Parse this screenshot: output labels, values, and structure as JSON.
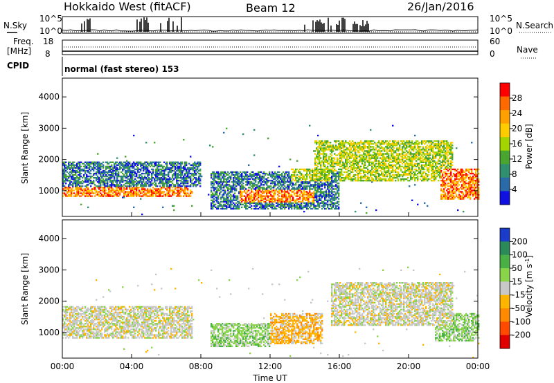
{
  "header": {
    "station": "Hokkaido West (fitACF)",
    "beam": "Beam 12",
    "date": "26/Jan/2016"
  },
  "summary_panels": {
    "nsky_label": "N.Sky",
    "nsearch_label": "N.Search",
    "nsky_ticks": [
      "10^5",
      "10^0"
    ],
    "nsearch_ticks": [
      "10^5",
      "10^0"
    ],
    "freq_label_1": "Freq.",
    "freq_label_2": "[MHz]",
    "freq_ticks": [
      "18",
      "8"
    ],
    "nave_label": "Nave",
    "nave_ticks": [
      "60",
      "0"
    ],
    "cpid_label": "CPID",
    "cpid_text": "normal (fast stereo) 153"
  },
  "chart_data": [
    {
      "type": "heatmap",
      "name": "power",
      "ylabel": "Slant Range [km]",
      "xlabel": "",
      "xlim": [
        0,
        24
      ],
      "ylim": [
        180,
        4600
      ],
      "x_ticks": [
        "00:00",
        "04:00",
        "08:00",
        "12:00",
        "16:00",
        "20:00",
        "00:00"
      ],
      "y_ticks": [
        "1000",
        "2000",
        "3000",
        "4000"
      ],
      "colorbar": {
        "label": "Power [dB]",
        "ticks": [
          "28",
          "24",
          "20",
          "16",
          "12",
          "8",
          "4"
        ],
        "colors": [
          "#ff0000",
          "#ff6a00",
          "#ff9f00",
          "#ffcc00",
          "#a3d400",
          "#4aa52e",
          "#2f8f6f",
          "#2a6aa8",
          "#1010e0"
        ]
      },
      "echo_regions": [
        {
          "t": [
            0.0,
            7.5
          ],
          "r": [
            800,
            1100
          ],
          "level": "high"
        },
        {
          "t": [
            10.2,
            14.5
          ],
          "r": [
            600,
            1000
          ],
          "level": "high"
        },
        {
          "t": [
            13.2,
            15.5
          ],
          "r": [
            1300,
            1700
          ],
          "level": "medium"
        },
        {
          "t": [
            21.8,
            24.0
          ],
          "r": [
            700,
            1700
          ],
          "level": "high"
        },
        {
          "t": [
            0.0,
            8.0
          ],
          "r": [
            1100,
            1900
          ],
          "level": "low"
        },
        {
          "t": [
            8.5,
            16.0
          ],
          "r": [
            400,
            1600
          ],
          "level": "low"
        },
        {
          "t": [
            14.5,
            22.5
          ],
          "r": [
            1300,
            2600
          ],
          "level": "medium"
        }
      ]
    },
    {
      "type": "heatmap",
      "name": "velocity",
      "ylabel": "Slant Range [km]",
      "xlabel": "Time UT",
      "xlim": [
        0,
        24
      ],
      "ylim": [
        180,
        4600
      ],
      "x_ticks": [
        "00:00",
        "04:00",
        "08:00",
        "12:00",
        "16:00",
        "20:00",
        "00:00"
      ],
      "y_ticks": [
        "1000",
        "2000",
        "3000",
        "4000"
      ],
      "colorbar": {
        "label": "Velocity [m s^-1]",
        "ticks": [
          "200",
          "100",
          "50",
          "15",
          "-15",
          "-50",
          "-100",
          "-200"
        ],
        "colors": [
          "#1a3cc8",
          "#2a8a5a",
          "#48b044",
          "#8ad44a",
          "#c8c8c8",
          "#ffb400",
          "#ff8a00",
          "#ff4a00",
          "#e00000"
        ]
      },
      "echo_regions": [
        {
          "t": [
            0.0,
            7.5
          ],
          "r": [
            800,
            1800
          ],
          "level": "grey"
        },
        {
          "t": [
            8.5,
            12.0
          ],
          "r": [
            500,
            1300
          ],
          "level": "green"
        },
        {
          "t": [
            12.0,
            15.0
          ],
          "r": [
            600,
            1600
          ],
          "level": "orange"
        },
        {
          "t": [
            15.5,
            22.5
          ],
          "r": [
            1200,
            2600
          ],
          "level": "grey"
        },
        {
          "t": [
            21.5,
            24.0
          ],
          "r": [
            700,
            1600
          ],
          "level": "green"
        }
      ]
    }
  ]
}
